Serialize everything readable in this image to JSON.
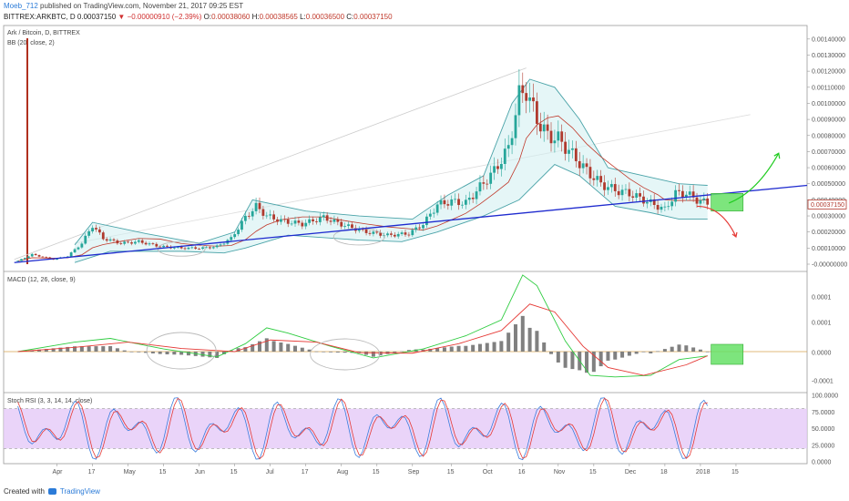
{
  "header": {
    "user": "Moeb_712",
    "published": "published on TradingView.com, November 21, 2017 09:25 EST",
    "symbol": "BITTREX:ARKBTC, D",
    "last": "0.00037150",
    "change_arrow": "▼",
    "change": "−0.00000910 (−2.39%)",
    "o_label": "O:",
    "o": "0.00038060",
    "h_label": "H:",
    "h": "0.00038565",
    "l_label": "L:",
    "l": "0.00036500",
    "c_label": "C:",
    "c": "0.00037150"
  },
  "footer": {
    "created_with": "Created with",
    "brand": "TradingView"
  },
  "colors": {
    "up": "#26a69a",
    "down": "#b03a2e",
    "bb_band": "#4aa3a8",
    "bb_mid": "#c0392b",
    "trendline": "#1f2bcf",
    "macd": "#2ecc40",
    "signal": "#e53935",
    "hist": "#808080",
    "stoch_k": "#3b7ddd",
    "stoch_d": "#e53935",
    "rsi_band": "#e5c9f7",
    "green_box": "#66e066",
    "arrow_up": "#22cc22",
    "arrow_down": "#e53935"
  },
  "chart_data": [
    {
      "type": "candlestick",
      "title": "Ark / Bitcoin, D, BITTREX",
      "indicator": "BB (20, close, 2)",
      "y_ticks": [
        "0.00140000",
        "0.00130000",
        "0.00120000",
        "0.00110000",
        "0.00100000",
        "0.00090000",
        "0.00080000",
        "0.00070000",
        "0.00060000",
        "0.00050000",
        "0.00040000",
        "0.00030000",
        "0.00020000",
        "0.00010000",
        "-0.00000000"
      ],
      "ylim": [
        0,
        0.00145
      ],
      "last_price_label": "0.00037150",
      "x_ticks": [
        "Apr",
        "17",
        "May",
        "15",
        "Jun",
        "15",
        "Jul",
        "17",
        "Aug",
        "15",
        "Sep",
        "15",
        "Oct",
        "16",
        "Nov",
        "15",
        "Dec",
        "18",
        "2018",
        "15"
      ],
      "close_series": [
        {
          "x": 4,
          "y": 2e-05
        },
        {
          "x": 8,
          "y": 6e-05
        },
        {
          "x": 14,
          "y": 3e-05
        },
        {
          "x": 18,
          "y": 5e-05
        },
        {
          "x": 22,
          "y": 0.00013
        },
        {
          "x": 25,
          "y": 0.00024
        },
        {
          "x": 28,
          "y": 0.00016
        },
        {
          "x": 33,
          "y": 0.00013
        },
        {
          "x": 38,
          "y": 0.00014
        },
        {
          "x": 44,
          "y": 0.00011
        },
        {
          "x": 50,
          "y": 0.0001
        },
        {
          "x": 56,
          "y": 0.0001
        },
        {
          "x": 60,
          "y": 0.00011
        },
        {
          "x": 64,
          "y": 0.00016
        },
        {
          "x": 68,
          "y": 0.00029
        },
        {
          "x": 71,
          "y": 0.00036
        },
        {
          "x": 74,
          "y": 0.0003
        },
        {
          "x": 78,
          "y": 0.00027
        },
        {
          "x": 84,
          "y": 0.00025
        },
        {
          "x": 90,
          "y": 0.00029
        },
        {
          "x": 96,
          "y": 0.00024
        },
        {
          "x": 102,
          "y": 0.0002
        },
        {
          "x": 108,
          "y": 0.00018
        },
        {
          "x": 114,
          "y": 0.00019
        },
        {
          "x": 118,
          "y": 0.00025
        },
        {
          "x": 122,
          "y": 0.00037
        },
        {
          "x": 126,
          "y": 0.00039
        },
        {
          "x": 130,
          "y": 0.00038
        },
        {
          "x": 134,
          "y": 0.00048
        },
        {
          "x": 138,
          "y": 0.00058
        },
        {
          "x": 142,
          "y": 0.00072
        },
        {
          "x": 145,
          "y": 0.00105
        },
        {
          "x": 147,
          "y": 0.00108
        },
        {
          "x": 150,
          "y": 0.0009
        },
        {
          "x": 153,
          "y": 0.0008
        },
        {
          "x": 156,
          "y": 0.00078
        },
        {
          "x": 160,
          "y": 0.00068
        },
        {
          "x": 164,
          "y": 0.00058
        },
        {
          "x": 168,
          "y": 0.0005
        },
        {
          "x": 172,
          "y": 0.00046
        },
        {
          "x": 176,
          "y": 0.00044
        },
        {
          "x": 180,
          "y": 0.0004
        },
        {
          "x": 184,
          "y": 0.00036
        },
        {
          "x": 186,
          "y": 0.00034
        },
        {
          "x": 189,
          "y": 0.00044
        },
        {
          "x": 192,
          "y": 0.00044
        },
        {
          "x": 195,
          "y": 0.0004
        },
        {
          "x": 198,
          "y": 0.00038
        }
      ],
      "bb_upper": [
        {
          "x": 20,
          "y": 0.00012
        },
        {
          "x": 25,
          "y": 0.00026
        },
        {
          "x": 40,
          "y": 0.00019
        },
        {
          "x": 55,
          "y": 0.00013
        },
        {
          "x": 65,
          "y": 0.0002
        },
        {
          "x": 70,
          "y": 0.0004
        },
        {
          "x": 85,
          "y": 0.00033
        },
        {
          "x": 100,
          "y": 0.0003
        },
        {
          "x": 115,
          "y": 0.00028
        },
        {
          "x": 125,
          "y": 0.00043
        },
        {
          "x": 135,
          "y": 0.00055
        },
        {
          "x": 143,
          "y": 0.001
        },
        {
          "x": 148,
          "y": 0.00115
        },
        {
          "x": 155,
          "y": 0.0011
        },
        {
          "x": 162,
          "y": 0.0009
        },
        {
          "x": 170,
          "y": 0.0006
        },
        {
          "x": 180,
          "y": 0.00055
        },
        {
          "x": 190,
          "y": 0.0005
        },
        {
          "x": 198,
          "y": 0.00049
        }
      ],
      "bb_lower": [
        {
          "x": 20,
          "y": 1e-05
        },
        {
          "x": 30,
          "y": 8e-05
        },
        {
          "x": 50,
          "y": 8e-05
        },
        {
          "x": 62,
          "y": 7e-05
        },
        {
          "x": 68,
          "y": 0.0001
        },
        {
          "x": 80,
          "y": 0.00018
        },
        {
          "x": 100,
          "y": 0.00015
        },
        {
          "x": 112,
          "y": 0.00014
        },
        {
          "x": 122,
          "y": 0.0002
        },
        {
          "x": 135,
          "y": 0.0003
        },
        {
          "x": 145,
          "y": 0.0004
        },
        {
          "x": 155,
          "y": 0.00062
        },
        {
          "x": 162,
          "y": 0.00055
        },
        {
          "x": 172,
          "y": 0.00036
        },
        {
          "x": 182,
          "y": 0.00032
        },
        {
          "x": 190,
          "y": 0.00028
        },
        {
          "x": 198,
          "y": 0.00028
        }
      ],
      "projection_zone": {
        "x_start": 199,
        "x_end": 208,
        "y_low": 0.00033,
        "y_high": 0.00044
      }
    },
    {
      "type": "line",
      "title": "MACD (12, 26, close, 9)",
      "y_ticks": [
        "0.0001",
        "0.0001",
        "0.0000",
        "-0.0001"
      ],
      "series": [
        {
          "name": "MACD",
          "values_note": "macd line"
        },
        {
          "name": "Signal"
        }
      ]
    },
    {
      "type": "line",
      "title": "Stoch RSI (3, 3, 14, 14, close)",
      "y_ticks": [
        "100.0000",
        "75.0000",
        "50.0000",
        "25.0000",
        "0.0000"
      ],
      "ylim": [
        0,
        100
      ],
      "band": [
        20,
        80
      ]
    }
  ]
}
